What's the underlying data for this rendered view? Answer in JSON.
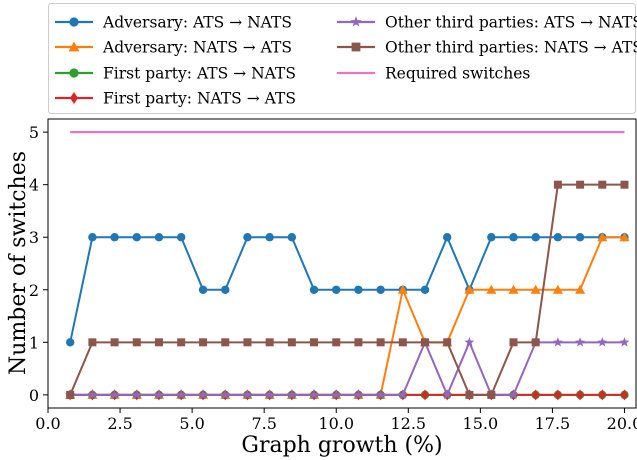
{
  "chart_data": {
    "type": "line",
    "title": "",
    "xlabel": "Graph growth (%)",
    "ylabel": "Number of switches",
    "xlim": [
      0.0,
      20.4
    ],
    "ylim": [
      -0.25,
      5.25
    ],
    "xticks": [
      "0.0",
      "2.5",
      "5.0",
      "7.5",
      "10.0",
      "12.5",
      "15.0",
      "17.5",
      "20.0"
    ],
    "yticks": [
      "0",
      "1",
      "2",
      "3",
      "4",
      "5"
    ],
    "grid": false,
    "legend_position": "top",
    "x": [
      0.77,
      1.54,
      2.31,
      3.08,
      3.85,
      4.62,
      5.38,
      6.15,
      6.92,
      7.69,
      8.46,
      9.23,
      10.0,
      10.77,
      11.54,
      12.31,
      13.08,
      13.85,
      14.62,
      15.38,
      16.15,
      16.92,
      17.69,
      18.46,
      19.23,
      20.0
    ],
    "series": [
      {
        "name": "Adversary: ATS → NATS",
        "color": "#1f77b4",
        "marker": "circle",
        "values": [
          1,
          3,
          3,
          3,
          3,
          3,
          2,
          2,
          3,
          3,
          3,
          2,
          2,
          2,
          2,
          2,
          2,
          3,
          2,
          3,
          3,
          3,
          3,
          3,
          3,
          3
        ]
      },
      {
        "name": "Adversary: NATS → ATS",
        "color": "#ff7f0e",
        "marker": "triangle",
        "values": [
          0,
          0,
          0,
          0,
          0,
          0,
          0,
          0,
          0,
          0,
          0,
          0,
          0,
          0,
          0,
          2,
          1,
          1,
          2,
          2,
          2,
          2,
          2,
          2,
          3,
          3
        ]
      },
      {
        "name": "First party: ATS → NATS",
        "color": "#2ca02c",
        "marker": "circle",
        "values": [
          0,
          0,
          0,
          0,
          0,
          0,
          0,
          0,
          0,
          0,
          0,
          0,
          0,
          0,
          0,
          0,
          0,
          0,
          0,
          0,
          0,
          0,
          0,
          0,
          0,
          0
        ]
      },
      {
        "name": "First party: NATS → ATS",
        "color": "#d62728",
        "marker": "diamond",
        "values": [
          0,
          0,
          0,
          0,
          0,
          0,
          0,
          0,
          0,
          0,
          0,
          0,
          0,
          0,
          0,
          0,
          0,
          0,
          0,
          0,
          0,
          0,
          0,
          0,
          0,
          0
        ]
      },
      {
        "name": "Other third parties: ATS → NATS",
        "color": "#9467bd",
        "marker": "star",
        "values": [
          0,
          0,
          0,
          0,
          0,
          0,
          0,
          0,
          0,
          0,
          0,
          0,
          0,
          0,
          0,
          0,
          1,
          0,
          1,
          0,
          0,
          1,
          1,
          1,
          1,
          1
        ]
      },
      {
        "name": "Other third parties: NATS → ATS",
        "color": "#8c564b",
        "marker": "square",
        "values": [
          0,
          1,
          1,
          1,
          1,
          1,
          1,
          1,
          1,
          1,
          1,
          1,
          1,
          1,
          1,
          1,
          1,
          1,
          0,
          0,
          1,
          1,
          4,
          4,
          4,
          4
        ]
      }
    ],
    "reference_lines": [
      {
        "name": "Required switches",
        "color": "#e377c2",
        "x_range": [
          0.77,
          20.0
        ],
        "value": 5
      }
    ]
  }
}
